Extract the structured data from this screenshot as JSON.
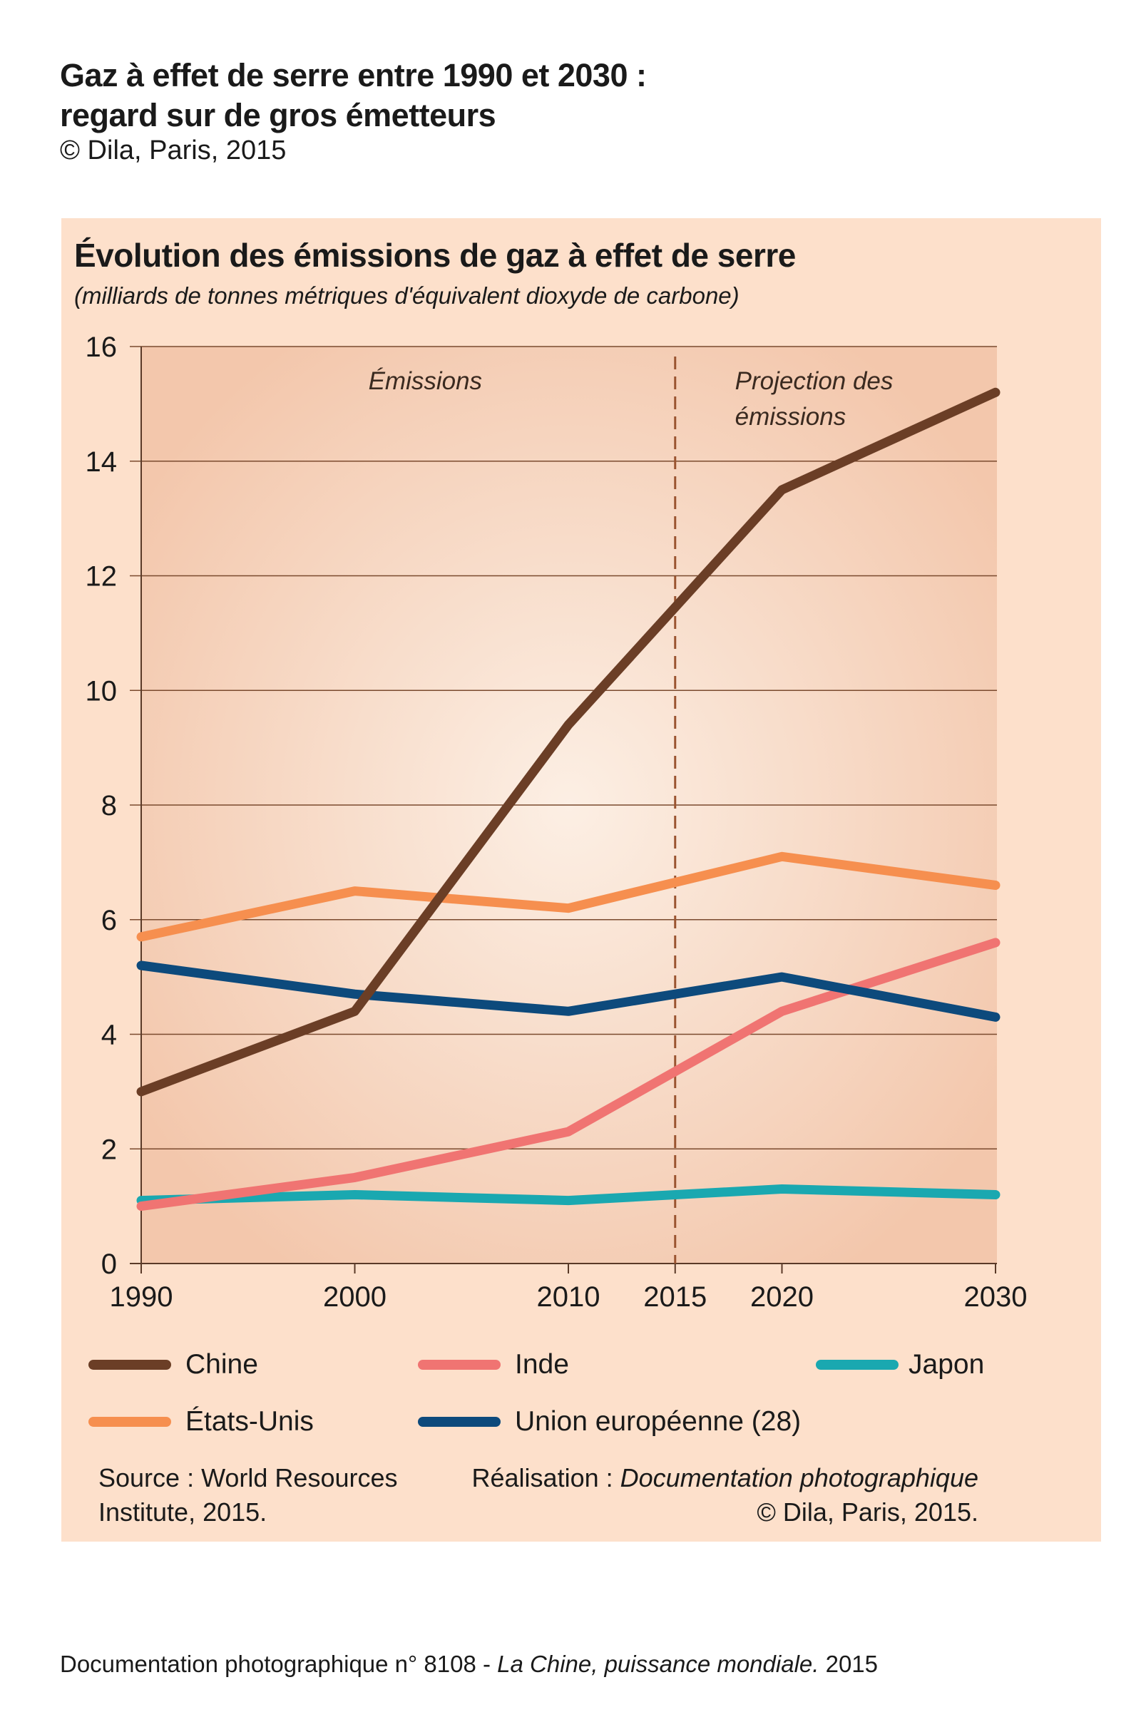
{
  "header": {
    "title_line1": "Gaz à effet de serre entre 1990 et 2030 :",
    "title_line2": "regard sur de gros émetteurs",
    "copyright": "© Dila, Paris, 2015"
  },
  "chart_data": {
    "type": "line",
    "title": "Évolution des émissions de gaz à effet de serre",
    "subtitle": "(milliards de tonnes métriques d'équivalent dioxyde de carbone)",
    "xlabel": "",
    "ylabel": "",
    "ylim": [
      0,
      16
    ],
    "yticks": [
      0,
      2,
      4,
      6,
      8,
      10,
      12,
      14,
      16
    ],
    "xticks": [
      1990,
      2000,
      2010,
      2015,
      2020,
      2030
    ],
    "xlim": [
      1990,
      2030
    ],
    "grid": true,
    "projection_start": 2015,
    "zone_labels": {
      "historical": "Émissions",
      "projection_line1": "Projection des",
      "projection_line2": "émissions"
    },
    "x": [
      1990,
      2000,
      2010,
      2020,
      2030
    ],
    "series": [
      {
        "name": "Chine",
        "color": "#6b3e26",
        "values": [
          3.0,
          4.4,
          9.4,
          13.5,
          15.2
        ]
      },
      {
        "name": "Inde",
        "color": "#f07472",
        "values": [
          1.0,
          1.5,
          2.3,
          4.4,
          5.6
        ]
      },
      {
        "name": "Japon",
        "color": "#1aa8b0",
        "values": [
          1.1,
          1.2,
          1.1,
          1.3,
          1.2
        ]
      },
      {
        "name": "États-Unis",
        "color": "#f68f4f",
        "values": [
          5.7,
          6.5,
          6.2,
          7.1,
          6.6
        ]
      },
      {
        "name": "Union européenne (28)",
        "color": "#0d4a7c",
        "values": [
          5.2,
          4.7,
          4.4,
          5.0,
          4.3
        ]
      }
    ],
    "legend_position": "bottom"
  },
  "footer_notes": {
    "source_line1": "Source : World Resources",
    "source_line2": "Institute, 2015.",
    "credit_prefix": "Réalisation : ",
    "credit_italic": "Documentation photographique",
    "credit_line2": "© Dila, Paris, 2015."
  },
  "footer": {
    "text_prefix": "Documentation photographique n° 8108 - ",
    "text_italic": "La Chine, puissance mondiale.",
    "text_suffix": " 2015"
  }
}
